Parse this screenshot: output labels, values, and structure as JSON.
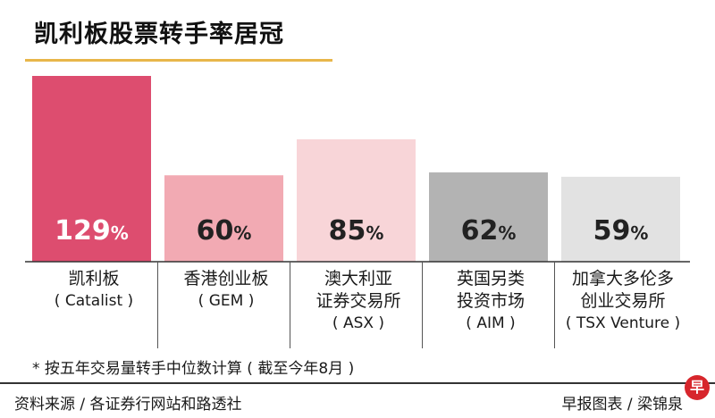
{
  "title": "凯利板股票转手率居冠",
  "chart_data": {
    "type": "bar",
    "categories": [
      "凯利板 ( Catalist )",
      "香港创业板 ( GEM )",
      "澳大利亚证券交易所 ( ASX )",
      "英国另类投资市场 ( AIM )",
      "加拿大多伦多创业交易所 ( TSX Venture )"
    ],
    "values": [
      129,
      60,
      85,
      62,
      59
    ],
    "value_labels": [
      "129",
      "60",
      "85",
      "62",
      "59"
    ],
    "unit": "%",
    "colors": [
      "#dd4d6f",
      "#f2aab3",
      "#f8d5d8",
      "#b3b3b3",
      "#e2e2e2"
    ],
    "ylim": [
      0,
      135
    ],
    "grid": false
  },
  "category_labels": [
    {
      "lines": [
        "凯利板"
      ],
      "sub": "( Catalist )"
    },
    {
      "lines": [
        "香港创业板"
      ],
      "sub": "( GEM )"
    },
    {
      "lines": [
        "澳大利亚",
        "证券交易所"
      ],
      "sub": "( ASX )"
    },
    {
      "lines": [
        "英国另类",
        "投资市场"
      ],
      "sub": "( AIM )"
    },
    {
      "lines": [
        "加拿大多伦多",
        "创业交易所"
      ],
      "sub": "( TSX Venture )"
    }
  ],
  "footnote": "* 按五年交易量转手中位数计算 ( 截至今年8月 )",
  "source": "资料来源 / 各证券行网站和路透社",
  "credit": "早报图表 / 梁锦泉",
  "logo_text": "早"
}
